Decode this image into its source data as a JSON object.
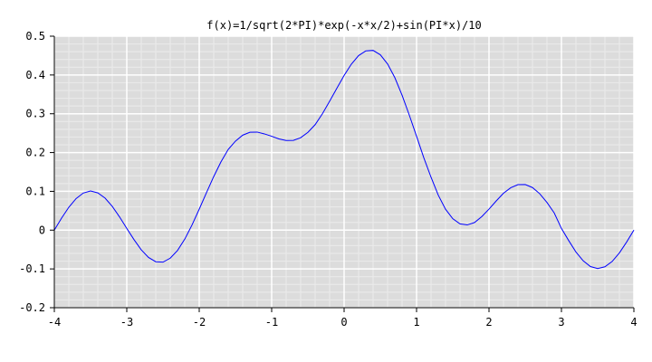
{
  "chart_data": {
    "type": "line",
    "title": "f(x)=1/sqrt(2*PI)*exp(-x*x/2)+sin(PI*x)/10",
    "xlabel": "",
    "ylabel": "",
    "xlim": [
      -4,
      4
    ],
    "ylim": [
      -0.2,
      0.5
    ],
    "x_ticks": [
      -4,
      -3,
      -2,
      -1,
      0,
      1,
      2,
      3,
      4
    ],
    "y_ticks": [
      -0.2,
      -0.1,
      0,
      0.1,
      0.2,
      0.3,
      0.4,
      0.5
    ],
    "x_tick_labels": [
      "-4",
      "-3",
      "-2",
      "-1",
      "0",
      "1",
      "2",
      "3",
      "4"
    ],
    "y_tick_labels": [
      "-0.2",
      "-0.1",
      "0",
      "0.1",
      "0.2",
      "0.3",
      "0.4",
      "0.5"
    ],
    "grid": true,
    "colors": {
      "plot_background": "#dcdcdc",
      "major_grid": "#ffffff",
      "minor_grid": "#ebebeb",
      "line": "#0000ff",
      "axis": "#000000"
    },
    "series": [
      {
        "x": [
          -4.0,
          -3.9,
          -3.8,
          -3.7,
          -3.6,
          -3.5,
          -3.4,
          -3.3,
          -3.2,
          -3.1,
          -3.0,
          -2.9,
          -2.8,
          -2.7,
          -2.6,
          -2.5,
          -2.4,
          -2.3,
          -2.2,
          -2.1,
          -2.0,
          -1.9,
          -1.8,
          -1.7,
          -1.6,
          -1.5,
          -1.4,
          -1.3,
          -1.2,
          -1.1,
          -1.0,
          -0.9,
          -0.8,
          -0.7,
          -0.6,
          -0.5,
          -0.4,
          -0.3,
          -0.2,
          -0.1,
          0.0,
          0.1,
          0.2,
          0.3,
          0.4,
          0.5,
          0.6,
          0.7,
          0.8,
          0.9,
          1.0,
          1.1,
          1.2,
          1.3,
          1.4,
          1.5,
          1.6,
          1.7,
          1.8,
          1.9,
          2.0,
          2.1,
          2.2,
          2.3,
          2.4,
          2.5,
          2.6,
          2.7,
          2.8,
          2.9,
          3.0,
          3.1,
          3.2,
          3.3,
          3.4,
          3.5,
          3.6,
          3.7,
          3.8,
          3.9,
          4.0
        ],
        "y": [
          0.0001,
          0.031,
          0.059,
          0.0813,
          0.0957,
          0.1009,
          0.0961,
          0.0826,
          0.0612,
          0.0341,
          0.0044,
          -0.0246,
          -0.0509,
          -0.0704,
          -0.0815,
          -0.0825,
          -0.0723,
          -0.0525,
          -0.0234,
          0.013,
          0.054,
          0.0965,
          0.1381,
          0.176,
          0.208,
          0.2295,
          0.2448,
          0.2523,
          0.2528,
          0.2481,
          0.242,
          0.2352,
          0.231,
          0.2315,
          0.2382,
          0.2521,
          0.2719,
          0.2999,
          0.3322,
          0.3658,
          0.3989,
          0.4279,
          0.45,
          0.4622,
          0.4634,
          0.4521,
          0.4284,
          0.3932,
          0.3479,
          0.2964,
          0.242,
          0.1866,
          0.1363,
          0.09,
          0.0538,
          0.0295,
          0.016,
          0.0134,
          0.0196,
          0.0349,
          0.0542,
          0.0753,
          0.0951,
          0.1093,
          0.1173,
          0.1175,
          0.1098,
          0.0939,
          0.0713,
          0.0444,
          0.0044,
          -0.0269,
          -0.0564,
          -0.0791,
          -0.0939,
          -0.0991,
          -0.0945,
          -0.0808,
          -0.0586,
          -0.0307,
          0.0001
        ]
      }
    ]
  }
}
